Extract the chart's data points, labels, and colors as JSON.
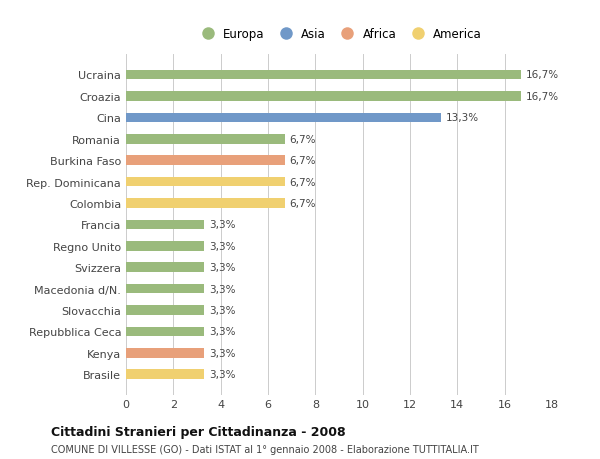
{
  "categories": [
    "Ucraina",
    "Croazia",
    "Cina",
    "Romania",
    "Burkina Faso",
    "Rep. Dominicana",
    "Colombia",
    "Francia",
    "Regno Unito",
    "Svizzera",
    "Macedonia d/N.",
    "Slovacchia",
    "Repubblica Ceca",
    "Kenya",
    "Brasile"
  ],
  "values": [
    16.7,
    16.7,
    13.3,
    6.7,
    6.7,
    6.7,
    6.7,
    3.3,
    3.3,
    3.3,
    3.3,
    3.3,
    3.3,
    3.3,
    3.3
  ],
  "labels": [
    "16,7%",
    "16,7%",
    "13,3%",
    "6,7%",
    "6,7%",
    "6,7%",
    "6,7%",
    "3,3%",
    "3,3%",
    "3,3%",
    "3,3%",
    "3,3%",
    "3,3%",
    "3,3%",
    "3,3%"
  ],
  "colors": [
    "#9aba7c",
    "#9aba7c",
    "#7098c8",
    "#9aba7c",
    "#e8a07a",
    "#f0d070",
    "#f0d070",
    "#9aba7c",
    "#9aba7c",
    "#9aba7c",
    "#9aba7c",
    "#9aba7c",
    "#9aba7c",
    "#e8a07a",
    "#f0d070"
  ],
  "legend": [
    {
      "label": "Europa",
      "color": "#9aba7c"
    },
    {
      "label": "Asia",
      "color": "#7098c8"
    },
    {
      "label": "Africa",
      "color": "#e8a07a"
    },
    {
      "label": "America",
      "color": "#f0d070"
    }
  ],
  "xlim": [
    0,
    18
  ],
  "xticks": [
    0,
    2,
    4,
    6,
    8,
    10,
    12,
    14,
    16,
    18
  ],
  "title": "Cittadini Stranieri per Cittadinanza - 2008",
  "subtitle": "COMUNE DI VILLESSE (GO) - Dati ISTAT al 1° gennaio 2008 - Elaborazione TUTTITALIA.IT",
  "bg_color": "#ffffff",
  "grid_color": "#cccccc",
  "bar_height": 0.45
}
